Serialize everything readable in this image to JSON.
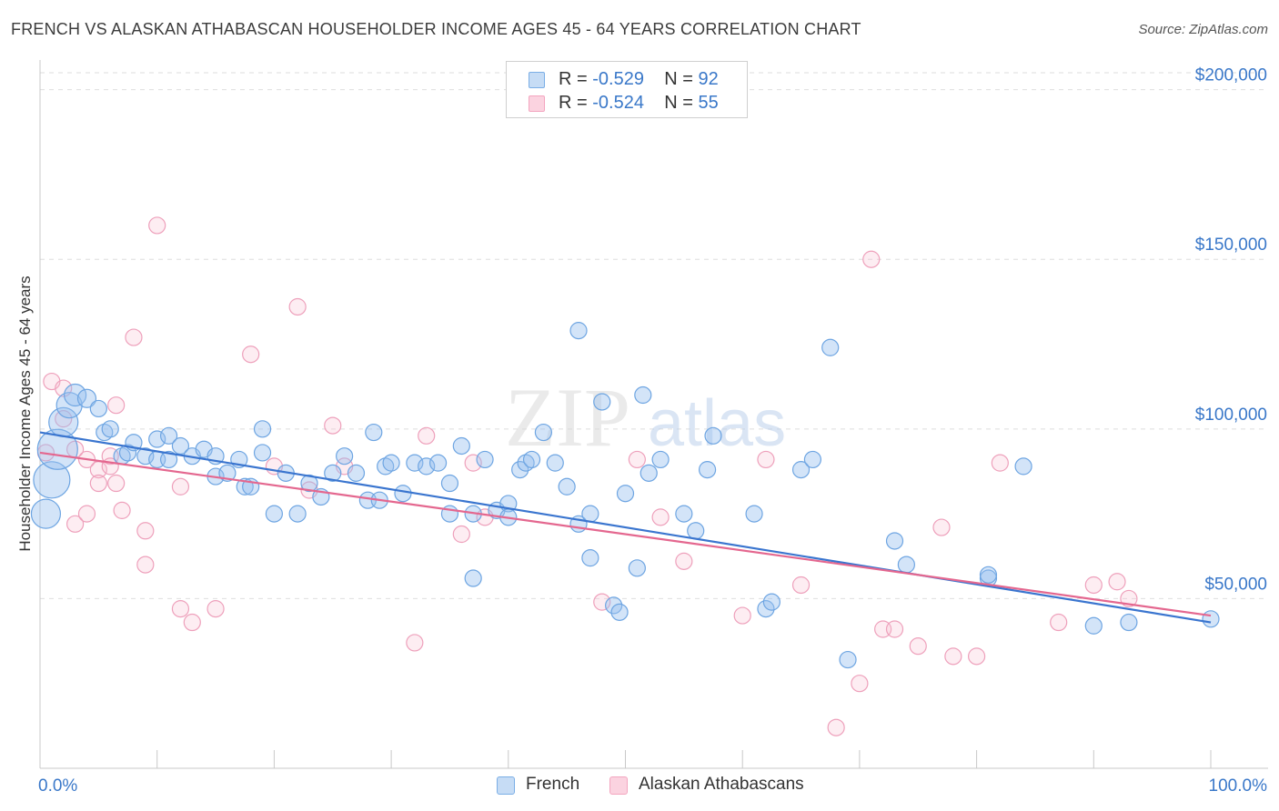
{
  "header": {
    "title": "FRENCH VS ALASKAN ATHABASCAN HOUSEHOLDER INCOME AGES 45 - 64 YEARS CORRELATION CHART",
    "source": "Source: ZipAtlas.com"
  },
  "legend": {
    "r_label": "R =",
    "n_label": "N =",
    "french": {
      "r": "-0.529",
      "n": "92"
    },
    "alaskan": {
      "r": "-0.524",
      "n": "55"
    }
  },
  "watermark": {
    "zip": "ZIP",
    "atlas": "atlas"
  },
  "chart_data": {
    "type": "scatter",
    "title": "FRENCH VS ALASKAN ATHABASCAN HOUSEHOLDER INCOME AGES 45 - 64 YEARS CORRELATION CHART",
    "xlabel": "",
    "ylabel": "Householder Income Ages 45 - 64 years",
    "xlim": [
      0,
      100
    ],
    "ylim": [
      0,
      205000
    ],
    "x_tick_labels": [
      "0.0%",
      "100.0%"
    ],
    "y_ticks": [
      50000,
      100000,
      150000,
      200000
    ],
    "y_tick_labels": [
      "$50,000",
      "$100,000",
      "$150,000",
      "$200,000"
    ],
    "grid": true,
    "legend_position": "top-center",
    "colors": {
      "french": "#7aaee6",
      "french_line": "#3a75cf",
      "alaskan": "#f3a5bf",
      "alaskan_line": "#e4678f",
      "axis_text": "#3a78c9"
    },
    "series": [
      {
        "name": "French",
        "r": -0.529,
        "n": 92,
        "trend": [
          [
            0,
            99000
          ],
          [
            100,
            43000
          ]
        ],
        "points": [
          [
            0.5,
            75000,
            16
          ],
          [
            1,
            85000,
            20
          ],
          [
            1.5,
            94000,
            22
          ],
          [
            2,
            102000,
            16
          ],
          [
            2.5,
            107000,
            14
          ],
          [
            3,
            110000,
            12
          ],
          [
            4,
            109000,
            10
          ],
          [
            5,
            106000,
            9
          ],
          [
            5.5,
            99000,
            9
          ],
          [
            6,
            100000,
            9
          ],
          [
            7,
            92000,
            9
          ],
          [
            7.5,
            93000,
            9
          ],
          [
            8,
            96000,
            9
          ],
          [
            9,
            92000,
            9
          ],
          [
            10,
            97000,
            9
          ],
          [
            10,
            91000,
            9
          ],
          [
            11,
            98000,
            9
          ],
          [
            11,
            91000,
            9
          ],
          [
            12,
            95000,
            9
          ],
          [
            13,
            92000,
            9
          ],
          [
            14,
            94000,
            9
          ],
          [
            15,
            86000,
            9
          ],
          [
            15,
            92000,
            9
          ],
          [
            16,
            87000,
            9
          ],
          [
            17,
            91000,
            9
          ],
          [
            17.5,
            83000,
            9
          ],
          [
            19,
            100000,
            9
          ],
          [
            19,
            93000,
            9
          ],
          [
            18,
            83000,
            9
          ],
          [
            20,
            75000,
            9
          ],
          [
            21,
            87000,
            9
          ],
          [
            22,
            75000,
            9
          ],
          [
            23,
            84000,
            9
          ],
          [
            24,
            80000,
            9
          ],
          [
            25,
            87000,
            9
          ],
          [
            26,
            92000,
            9
          ],
          [
            27,
            87000,
            9
          ],
          [
            28,
            79000,
            9
          ],
          [
            29,
            79000,
            9
          ],
          [
            28.5,
            99000,
            9
          ],
          [
            29.5,
            89000,
            9
          ],
          [
            30,
            90000,
            9
          ],
          [
            31,
            81000,
            9
          ],
          [
            32,
            90000,
            9
          ],
          [
            33,
            89000,
            9
          ],
          [
            34,
            90000,
            9
          ],
          [
            35,
            84000,
            9
          ],
          [
            36,
            95000,
            9
          ],
          [
            35,
            75000,
            9
          ],
          [
            37,
            75000,
            9
          ],
          [
            38,
            91000,
            9
          ],
          [
            39,
            76000,
            9
          ],
          [
            40,
            78000,
            9
          ],
          [
            41,
            88000,
            9
          ],
          [
            41.5,
            90000,
            9
          ],
          [
            42,
            91000,
            9
          ],
          [
            43,
            99000,
            9
          ],
          [
            37,
            56000,
            9
          ],
          [
            40,
            74000,
            9
          ],
          [
            44,
            90000,
            9
          ],
          [
            45,
            83000,
            9
          ],
          [
            46,
            72000,
            9
          ],
          [
            47,
            75000,
            9
          ],
          [
            48,
            108000,
            9
          ],
          [
            47,
            62000,
            9
          ],
          [
            50,
            81000,
            9
          ],
          [
            52,
            87000,
            9
          ],
          [
            53,
            91000,
            9
          ],
          [
            49,
            48000,
            9
          ],
          [
            49.5,
            46000,
            9
          ],
          [
            51,
            59000,
            9
          ],
          [
            51.5,
            110000,
            9
          ],
          [
            46,
            129000,
            9
          ],
          [
            55,
            75000,
            9
          ],
          [
            56,
            70000,
            9
          ],
          [
            57,
            88000,
            9
          ],
          [
            57.5,
            98000,
            9
          ],
          [
            61,
            75000,
            9
          ],
          [
            62,
            47000,
            9
          ],
          [
            62.5,
            49000,
            9
          ],
          [
            65,
            88000,
            9
          ],
          [
            66,
            91000,
            9
          ],
          [
            67.5,
            124000,
            9
          ],
          [
            69,
            32000,
            9
          ],
          [
            73,
            67000,
            9
          ],
          [
            74,
            60000,
            9
          ],
          [
            81,
            56000,
            9
          ],
          [
            81,
            57000,
            9
          ],
          [
            84,
            89000,
            9
          ],
          [
            90,
            42000,
            9
          ],
          [
            93,
            43000,
            9
          ],
          [
            100,
            44000,
            9
          ]
        ]
      },
      {
        "name": "Alaskan Athabascans",
        "r": -0.524,
        "n": 55,
        "trend": [
          [
            0,
            93000
          ],
          [
            100,
            45000
          ]
        ],
        "points": [
          [
            0.5,
            93000,
            9
          ],
          [
            1,
            114000,
            9
          ],
          [
            2,
            103000,
            9
          ],
          [
            2,
            112000,
            9
          ],
          [
            3,
            94000,
            9
          ],
          [
            3,
            72000,
            9
          ],
          [
            4,
            91000,
            9
          ],
          [
            4,
            75000,
            9
          ],
          [
            5,
            88000,
            9
          ],
          [
            5,
            84000,
            9
          ],
          [
            6,
            92000,
            9
          ],
          [
            6,
            89000,
            9
          ],
          [
            6.5,
            107000,
            9
          ],
          [
            6.5,
            84000,
            9
          ],
          [
            7,
            76000,
            9
          ],
          [
            8,
            127000,
            9
          ],
          [
            9,
            70000,
            9
          ],
          [
            9,
            60000,
            9
          ],
          [
            10,
            160000,
            9
          ],
          [
            12,
            83000,
            9
          ],
          [
            12,
            47000,
            9
          ],
          [
            13,
            43000,
            9
          ],
          [
            15,
            47000,
            9
          ],
          [
            18,
            122000,
            9
          ],
          [
            20,
            89000,
            9
          ],
          [
            22,
            136000,
            9
          ],
          [
            23,
            82000,
            9
          ],
          [
            25,
            101000,
            9
          ],
          [
            26,
            89000,
            9
          ],
          [
            32,
            37000,
            9
          ],
          [
            33,
            98000,
            9
          ],
          [
            36,
            69000,
            9
          ],
          [
            37,
            90000,
            9
          ],
          [
            38,
            74000,
            9
          ],
          [
            48,
            49000,
            9
          ],
          [
            51,
            91000,
            9
          ],
          [
            53,
            74000,
            9
          ],
          [
            55,
            61000,
            9
          ],
          [
            60,
            45000,
            9
          ],
          [
            62,
            91000,
            9
          ],
          [
            65,
            54000,
            9
          ],
          [
            68,
            12000,
            9
          ],
          [
            70,
            25000,
            9
          ],
          [
            71,
            150000,
            9
          ],
          [
            72,
            41000,
            9
          ],
          [
            73,
            41000,
            9
          ],
          [
            75,
            36000,
            9
          ],
          [
            77,
            71000,
            9
          ],
          [
            78,
            33000,
            9
          ],
          [
            80,
            33000,
            9
          ],
          [
            82,
            90000,
            9
          ],
          [
            87,
            43000,
            9
          ],
          [
            90,
            54000,
            9
          ],
          [
            92,
            55000,
            9
          ],
          [
            93,
            50000,
            9
          ]
        ]
      }
    ]
  }
}
